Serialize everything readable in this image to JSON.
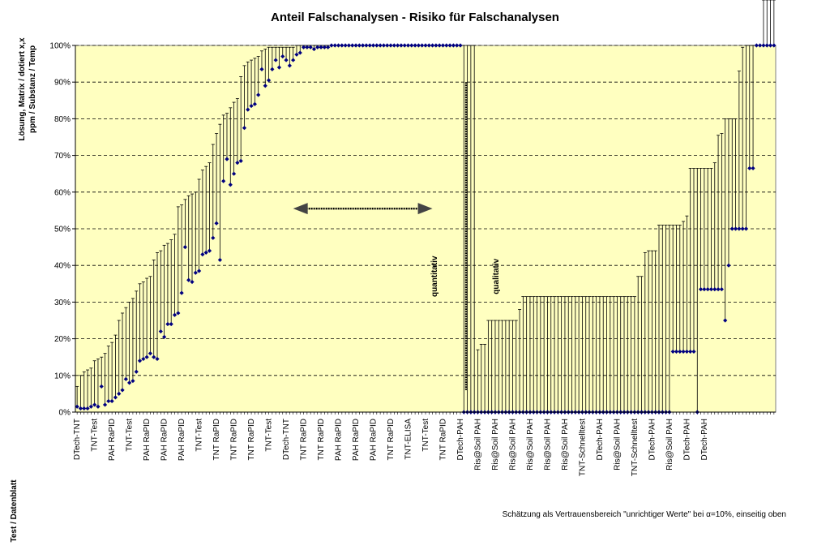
{
  "chart_data": {
    "type": "scatter",
    "title": "Anteil Falschanalysen - Risiko für Falschanalysen",
    "ylabel_lines": [
      "Lösung, Matrix / dotiert x,x",
      "ppm / Substanz / Temp"
    ],
    "xlabel": "Test / Datenblatt",
    "note": "Schätzung als Vertrauensbereich \"unrichtiger Werte\" bei α=10%, einseitig oben",
    "ylim": [
      0,
      100
    ],
    "y_ticks": [
      "0%",
      "10%",
      "20%",
      "30%",
      "40%",
      "50%",
      "60%",
      "70%",
      "80%",
      "90%",
      "100%"
    ],
    "grid": "horizontal dashed",
    "background": "#ffffc0",
    "marker_color": "#000080",
    "category_labels": [
      "DTech-TNT",
      "TNT-Test",
      "PAH RaPID",
      "TNT-Test",
      "PAH RaPID",
      "PAH RaPID",
      "PAH RaPID",
      "TNT-Test",
      "TNT RaPID",
      "TNT RaPID",
      "TNT RaPID",
      "TNT-Test",
      "DTech-TNT",
      "TNT RaPID",
      "TNT RaPID",
      "PAH RaPID",
      "PAH RaPID",
      "PAH RaPID",
      "TNT RaPID",
      "TNT-ELISA",
      "TNT-Test",
      "TNT RaPID",
      "DTech-PAH",
      "Ris@Soil PAH",
      "Ris@Soil PAH",
      "Ris@Soil PAH",
      "Ris@Soil PAH",
      "Ris@Soil PAH",
      "Ris@Soil PAH",
      "TNT-Schnelltest",
      "DTech-PAH",
      "Ris@Soil PAH",
      "TNT-Schnelltest",
      "DTech-PAH",
      "Ris@Soil PAH",
      "DTech-PAH",
      "DTech-PAH"
    ],
    "annotations": {
      "left_label": "quantitativ",
      "right_label": "qualitativ",
      "divider_top": 90,
      "divider_bottom": 6,
      "arrow_y": 55.5,
      "arrow_from_index": 62,
      "arrow_to_index": 102
    },
    "series": [
      {
        "values": [
          1.5,
          1,
          1,
          1,
          1.5,
          2,
          1.5,
          7,
          2,
          3,
          3,
          4,
          5,
          6,
          9,
          8,
          8.5,
          11,
          14,
          14.5,
          15,
          16,
          15,
          14.5,
          22,
          20.5,
          24,
          24,
          26.5,
          27,
          32.5,
          45,
          36,
          35.5,
          38,
          38.5,
          43,
          43.5,
          44,
          47.5,
          51.5,
          41.5,
          63,
          69,
          62,
          65,
          68,
          68.5,
          77.5,
          82.5,
          83.5,
          84,
          86.5,
          93.5,
          89,
          90.5,
          93.5,
          96,
          94,
          97,
          96,
          94.5,
          96,
          97.5,
          98,
          99.5,
          99.5,
          99.5,
          99,
          99.5,
          99.5,
          99.5,
          99.5,
          100,
          100,
          100,
          100,
          100,
          100,
          100,
          100,
          100,
          100,
          100,
          100,
          100,
          100,
          100,
          100,
          100,
          100,
          100,
          100,
          100,
          100,
          100,
          100,
          100,
          100,
          100,
          100,
          100,
          100,
          100,
          100,
          100,
          100,
          100,
          100,
          100,
          100,
          0,
          0,
          0,
          0,
          0,
          0,
          0,
          0,
          0,
          0,
          0,
          0,
          0,
          0,
          0,
          0,
          0,
          0,
          0,
          0,
          0,
          0,
          0,
          0,
          0,
          0,
          0,
          0,
          0,
          0,
          0,
          0,
          0,
          0,
          0,
          0,
          0,
          0,
          0,
          0,
          0,
          0,
          0,
          0,
          0,
          0,
          0,
          0,
          0,
          0,
          0,
          0,
          0,
          0,
          0,
          0,
          0,
          0,
          0,
          0,
          16.5,
          16.5,
          16.5,
          16.5,
          16.5,
          16.5,
          16.5,
          0,
          33.5,
          33.5,
          33.5,
          33.5,
          33.5,
          33.5,
          33.5,
          25,
          40,
          50,
          50,
          50,
          50,
          50,
          66.5,
          66.5,
          100,
          100,
          100,
          100,
          100,
          100
        ]
      },
      {
        "values": [
          7,
          10,
          11,
          11.5,
          12,
          14,
          14.5,
          15,
          16,
          18,
          19,
          21,
          25,
          27,
          28.5,
          30,
          31,
          33,
          35,
          35.5,
          36.5,
          37,
          41.5,
          43.5,
          44,
          45.5,
          46,
          47,
          48.5,
          56,
          56.5,
          58,
          59,
          59.5,
          60,
          63.5,
          66,
          67,
          68,
          73,
          76,
          78.5,
          81,
          81.5,
          83,
          84.5,
          85.5,
          91.5,
          94.5,
          95.5,
          96,
          96.5,
          97,
          98.5,
          99,
          99.5,
          99.5,
          99.5,
          99.5,
          99.5,
          99.5,
          99.5,
          99.5,
          100,
          100,
          100,
          100,
          100,
          100,
          100,
          100,
          100,
          100,
          100,
          100,
          100,
          100,
          100,
          100,
          100,
          100,
          100,
          100,
          100,
          100,
          100,
          100,
          100,
          100,
          100,
          100,
          100,
          100,
          100,
          100,
          100,
          100,
          100,
          100,
          100,
          100,
          100,
          100,
          100,
          100,
          100,
          100,
          100,
          100,
          100,
          100,
          100,
          100,
          100,
          100,
          17,
          18.5,
          18.5,
          25,
          25,
          25,
          25,
          25,
          25,
          25,
          25,
          25,
          28,
          31.5,
          31.5,
          31.5,
          31.5,
          31.5,
          31.5,
          31.5,
          31.5,
          31.5,
          31.5,
          31.5,
          31.5,
          31.5,
          31.5,
          31.5,
          31.5,
          31.5,
          31.5,
          31.5,
          31.5,
          31.5,
          31.5,
          31.5,
          31.5,
          31.5,
          31.5,
          31.5,
          31.5,
          31.5,
          31.5,
          31.5,
          31.5,
          31.5,
          37,
          37,
          43.5,
          44,
          44,
          44,
          51,
          51,
          51,
          51,
          51,
          51,
          51,
          52,
          53.5,
          66.5,
          66.5,
          66.5,
          66.5,
          66.5,
          66.5,
          66.5,
          68,
          75.5,
          76,
          80,
          80,
          80,
          80,
          93,
          99.5,
          100,
          100,
          100,
          100,
          100
        ]
      }
    ]
  }
}
